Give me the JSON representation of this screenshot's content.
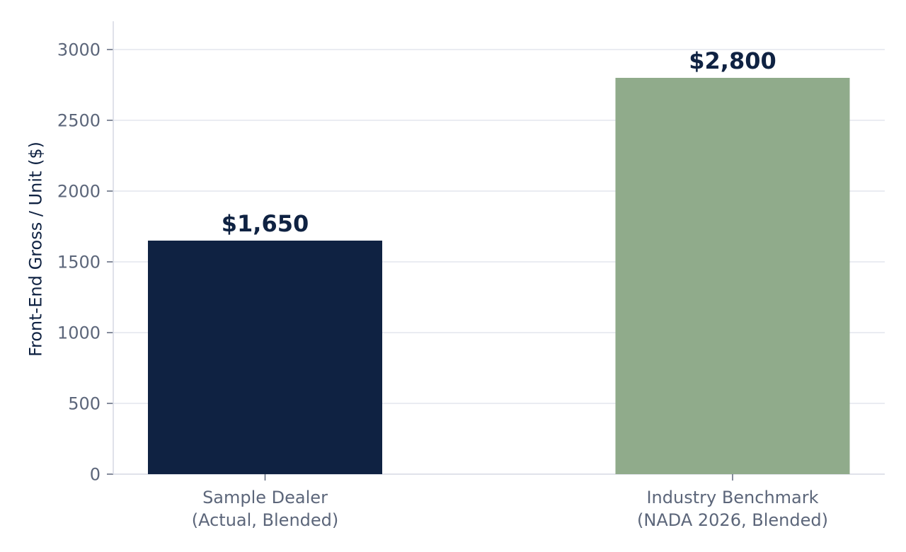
{
  "chart_data": {
    "type": "bar",
    "categories": [
      [
        "Sample Dealer",
        "(Actual, Blended)"
      ],
      [
        "Industry Benchmark",
        "(NADA 2026, Blended)"
      ]
    ],
    "values": [
      1650,
      2800
    ],
    "value_labels": [
      "$1,650",
      "$2,800"
    ],
    "colors": [
      "#0f2242",
      "#90ab8b"
    ],
    "title": "",
    "xlabel": "",
    "ylabel": "Front-End Gross / Unit ($)",
    "ylim": [
      0,
      3200
    ],
    "yticks": [
      0,
      500,
      1000,
      1500,
      2000,
      2500,
      3000
    ],
    "grid": true,
    "legend": false
  }
}
